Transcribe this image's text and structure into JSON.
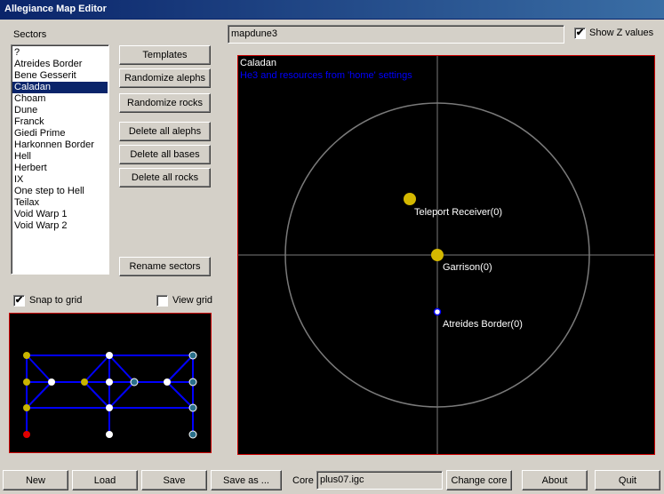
{
  "window": {
    "title": "Allegiance Map Editor"
  },
  "sectors": {
    "label": "Sectors",
    "items": [
      "?",
      "Atreides Border",
      "Bene Gesserit",
      "Caladan",
      "Choam",
      "Dune",
      "Franck",
      "Giedi Prime",
      "Harkonnen Border",
      "Hell",
      "Herbert",
      "IX",
      "One step to Hell",
      "Teilax",
      "Void Warp 1",
      "Void Warp 2"
    ],
    "selected_index": 3
  },
  "side_buttons": {
    "templates": "Templates",
    "randomize_alephs": "Randomize alephs",
    "randomize_rocks": "Randomize rocks",
    "delete_alephs": "Delete all alephs",
    "delete_bases": "Delete all bases",
    "delete_rocks": "Delete all rocks",
    "rename_sectors": "Rename sectors"
  },
  "snap_to_grid": {
    "label": "Snap to grid",
    "checked": true
  },
  "view_grid": {
    "label": "View grid",
    "checked": false
  },
  "map_name": "mapdune3",
  "show_z": {
    "label": "Show Z values",
    "checked": true
  },
  "map_view": {
    "sector_name": "Caladan",
    "info_line": "He3 and resources from 'home' settings",
    "info_color": "#0000ff",
    "objects": [
      {
        "label": "Teleport Receiver(0)",
        "type": "station",
        "color": "#d4b800"
      },
      {
        "label": "Garrison(0)",
        "type": "station",
        "color": "#d4b800"
      },
      {
        "label": "Atreides Border(0)",
        "type": "aleph",
        "color": "#ffffff"
      }
    ]
  },
  "bottom": {
    "new": "New",
    "load": "Load",
    "save": "Save",
    "save_as": "Save as ...",
    "core_label": "Core",
    "core_value": "plus07.igc",
    "change_core": "Change core",
    "about": "About",
    "quit": "Quit"
  },
  "colors": {
    "link": "#0000cc",
    "node_yellow": "#c8b400",
    "node_white": "#ffffff",
    "node_teal": "#2a6f8a",
    "node_red": "#e00000",
    "border_red": "#cc0000"
  }
}
